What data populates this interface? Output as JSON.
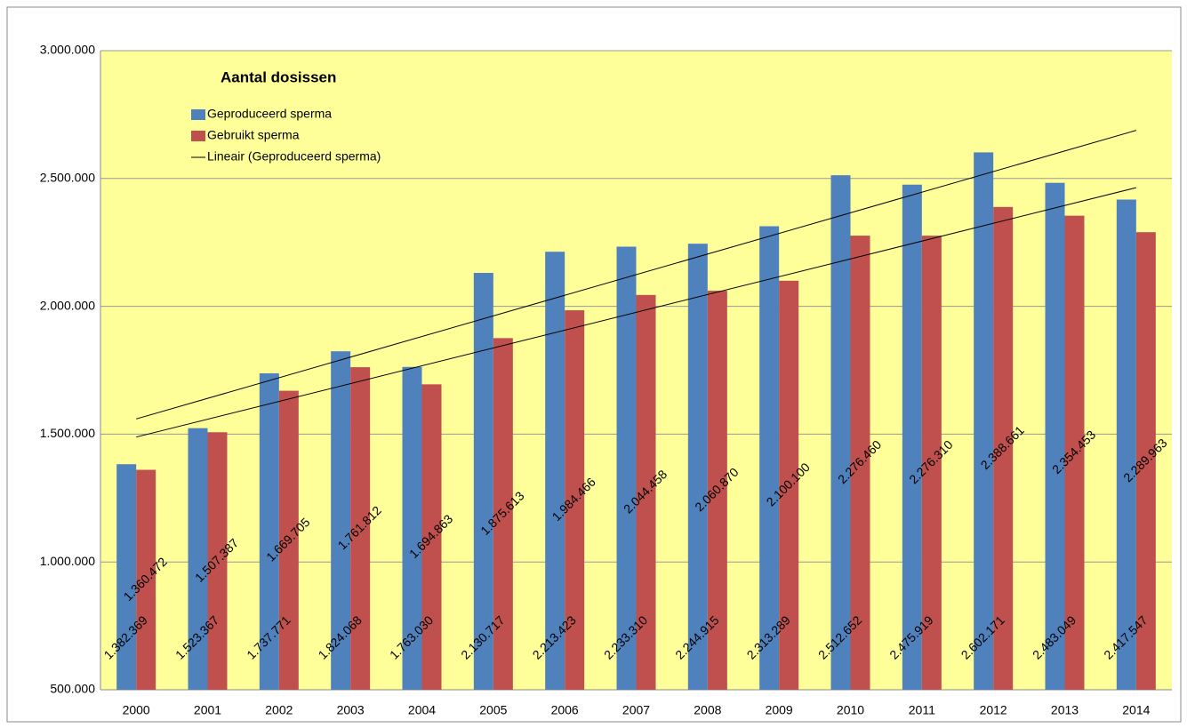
{
  "chart_data": {
    "type": "bar",
    "title": "Aantal dosissen",
    "categories": [
      "2000",
      "2001",
      "2002",
      "2003",
      "2004",
      "2005",
      "2006",
      "2007",
      "2008",
      "2009",
      "2010",
      "2011",
      "2012",
      "2013",
      "2014"
    ],
    "series": [
      {
        "name": "Geproduceerd sperma",
        "color": "#4f81bd",
        "trendline": true,
        "values": [
          1382369,
          1523367,
          1737771,
          1824068,
          1763030,
          2130717,
          2213423,
          2233310,
          2244915,
          2313289,
          2512652,
          2475919,
          2602171,
          2483049,
          2417547
        ],
        "value_labels": [
          "1.382.369",
          "1.523.367",
          "1.737.771",
          "1.824.068",
          "1.763.030",
          "2.130.717",
          "2.213.423",
          "2.233.310",
          "2.244.915",
          "2.313.289",
          "2.512.652",
          "2.475.919",
          "2.602.171",
          "2.483.049",
          "2.417.547"
        ]
      },
      {
        "name": "Gebruikt sperma",
        "color": "#c0504d",
        "trendline": true,
        "values": [
          1360472,
          1507387,
          1669705,
          1761812,
          1694863,
          1875613,
          1984466,
          2044458,
          2060870,
          2100100,
          2276460,
          2276310,
          2388661,
          2354453,
          2289963
        ],
        "value_labels": [
          "1.360.472",
          "1.507.387",
          "1.669.705",
          "1.761.812",
          "1.694.863",
          "1.875.613",
          "1.984.466",
          "2.044.458",
          "2.060.870",
          "2.100.100",
          "2.276.460",
          "2.276.310",
          "2.388.661",
          "2.354.453",
          "2.289.963"
        ]
      }
    ],
    "trendline_legend": "Lineair (Geproduceerd sperma)",
    "ylim": [
      500000,
      3000000
    ],
    "yticks": [
      {
        "value": 500000,
        "label": "500.000"
      },
      {
        "value": 1000000,
        "label": "1.000.000"
      },
      {
        "value": 1500000,
        "label": "1.500.000"
      },
      {
        "value": 2000000,
        "label": "2.000.000"
      },
      {
        "value": 2500000,
        "label": "2.500.000"
      },
      {
        "value": 3000000,
        "label": "3.000.000"
      }
    ],
    "grid": true,
    "background": "#ffff99",
    "legend": "upper left"
  }
}
